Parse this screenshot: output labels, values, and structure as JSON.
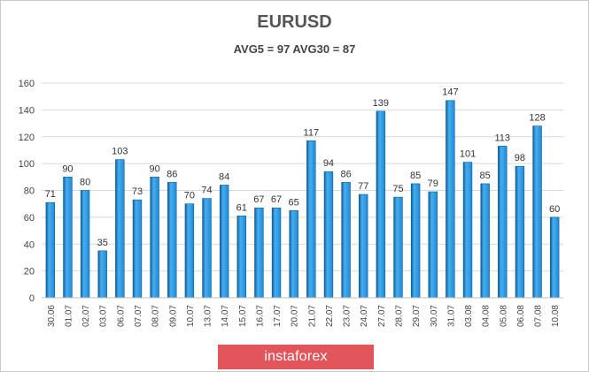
{
  "chart_data": {
    "type": "bar",
    "title": "EURUSD",
    "subtitle": "AVG5 = 97 AVG30 = 87",
    "categories": [
      "30.06",
      "01.07",
      "02.07",
      "03.07",
      "06.07",
      "07.07",
      "08.07",
      "09.07",
      "10.07",
      "13.07",
      "14.07",
      "15.07",
      "16.07",
      "17.07",
      "20.07",
      "21.07",
      "22.07",
      "23.07",
      "24.07",
      "27.07",
      "28.07",
      "29.07",
      "30.07",
      "31.07",
      "03.08",
      "04.08",
      "05.08",
      "06.08",
      "07.08",
      "10.08"
    ],
    "values": [
      71,
      90,
      80,
      35,
      103,
      73,
      90,
      86,
      70,
      74,
      84,
      61,
      67,
      67,
      65,
      117,
      94,
      86,
      77,
      139,
      75,
      85,
      79,
      147,
      101,
      85,
      113,
      98,
      128,
      60
    ],
    "yticks": [
      0,
      20,
      40,
      60,
      80,
      100,
      120,
      140,
      160
    ],
    "ylim": [
      0,
      160
    ],
    "grid": true,
    "colors": {
      "bar": "#1e8ad6",
      "bar_light": "#48aef0",
      "bar_edge": "#0d5d99"
    }
  },
  "watermark": "instaforex"
}
